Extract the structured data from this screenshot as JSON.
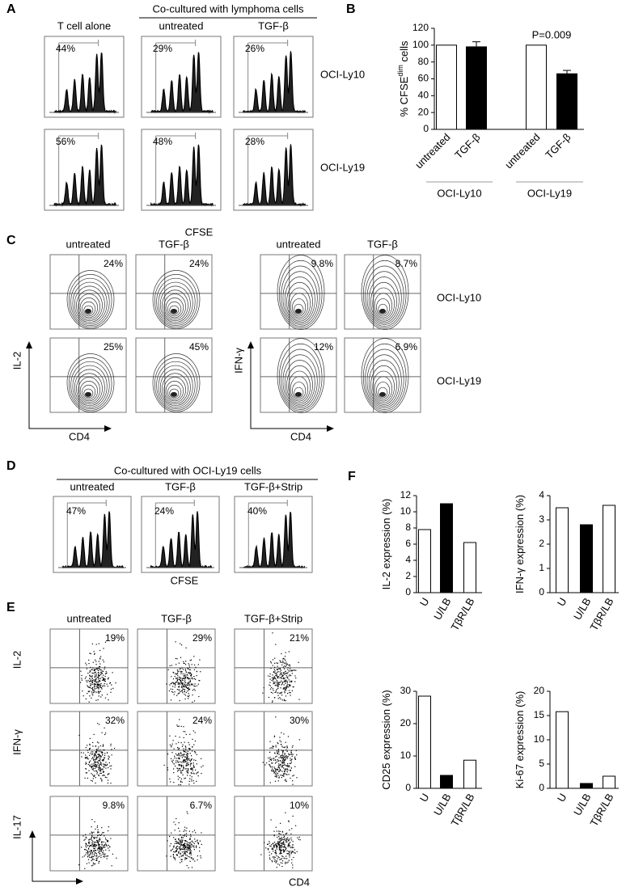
{
  "panel_labels": [
    "A",
    "B",
    "C",
    "D",
    "E",
    "F"
  ],
  "panel_a": {
    "group_header": "Co-cultured with lymphoma cells",
    "columns": [
      "T cell alone",
      "untreated",
      "TGF-β"
    ],
    "rows": [
      "OCI-Ly10",
      "OCI-Ly19"
    ],
    "percentages": [
      [
        "44%",
        "29%",
        "26%"
      ],
      [
        "56%",
        "48%",
        "28%"
      ]
    ],
    "x_label": "CFSE"
  },
  "panel_c": {
    "columns": [
      "untreated",
      "TGF-β",
      "untreated",
      "TGF-β"
    ],
    "rows": [
      "OCI-Ly10",
      "OCI-Ly19"
    ],
    "percentages": [
      [
        "24%",
        "24%",
        "9.8%",
        "8.7%"
      ],
      [
        "25%",
        "45%",
        "12%",
        "6.9%"
      ]
    ],
    "y_labels": [
      "IL-2",
      "IFN-γ"
    ],
    "x_labels": [
      "CD4",
      "CD4"
    ]
  },
  "panel_d": {
    "group_header": "Co-cultured with OCI-Ly19 cells",
    "columns": [
      "untreated",
      "TGF-β",
      "TGF-β+Strip"
    ],
    "percentages": [
      "47%",
      "24%",
      "40%"
    ],
    "x_label": "CFSE"
  },
  "panel_e": {
    "columns": [
      "untreated",
      "TGF-β",
      "TGF-β+Strip"
    ],
    "rows": [
      "IL-2",
      "IFN-γ",
      "IL-17"
    ],
    "percentages": [
      [
        "19%",
        "29%",
        "21%"
      ],
      [
        "32%",
        "24%",
        "30%"
      ],
      [
        "9.8%",
        "6.7%",
        "10%"
      ]
    ],
    "x_label": "CD4"
  },
  "chart_data": [
    {
      "type": "bar",
      "ylabel": "% CFSE",
      "ylabel_superscript": "dim",
      "ylabel_suffix": " cells",
      "categories": [
        "untreated",
        "TGF-β",
        "untreated",
        "TGF-β"
      ],
      "values": [
        100,
        98,
        100,
        66
      ],
      "errors": [
        null,
        6,
        null,
        4
      ],
      "colors": [
        "#ffffff",
        "#000000",
        "#ffffff",
        "#000000"
      ],
      "groups": [
        "OCI-Ly10",
        "OCI-Ly19"
      ],
      "annotation": "P=0.009",
      "ylim": [
        0,
        120
      ],
      "yticks": [
        0,
        20,
        40,
        60,
        80,
        100,
        120
      ]
    },
    {
      "type": "bar",
      "ylabel": "IL-2 expression (%)",
      "categories": [
        "U",
        "U/LB",
        "TβR/LB"
      ],
      "values": [
        7.8,
        11,
        6.2
      ],
      "colors": [
        "#ffffff",
        "#000000",
        "#ffffff"
      ],
      "ylim": [
        0,
        12
      ],
      "yticks": [
        0,
        2,
        4,
        6,
        8,
        10,
        12
      ]
    },
    {
      "type": "bar",
      "ylabel": "IFN-γ expression (%)",
      "categories": [
        "U",
        "U/LB",
        "TβR/LB"
      ],
      "values": [
        3.5,
        2.8,
        3.6
      ],
      "colors": [
        "#ffffff",
        "#000000",
        "#ffffff"
      ],
      "ylim": [
        0,
        4
      ],
      "yticks": [
        0,
        1,
        2,
        3,
        4
      ]
    },
    {
      "type": "bar",
      "ylabel": "CD25 expression (%)",
      "categories": [
        "U",
        "U/LB",
        "TβR/LB"
      ],
      "values": [
        28.5,
        4,
        8.7
      ],
      "colors": [
        "#ffffff",
        "#000000",
        "#ffffff"
      ],
      "ylim": [
        0,
        30
      ],
      "yticks": [
        0,
        10,
        20,
        30
      ]
    },
    {
      "type": "bar",
      "ylabel": "Ki-67 expression (%)",
      "categories": [
        "U",
        "U/LB",
        "TβR/LB"
      ],
      "values": [
        15.8,
        1,
        2.5
      ],
      "colors": [
        "#ffffff",
        "#000000",
        "#ffffff"
      ],
      "ylim": [
        0,
        20
      ],
      "yticks": [
        0,
        5,
        10,
        15,
        20
      ]
    }
  ]
}
